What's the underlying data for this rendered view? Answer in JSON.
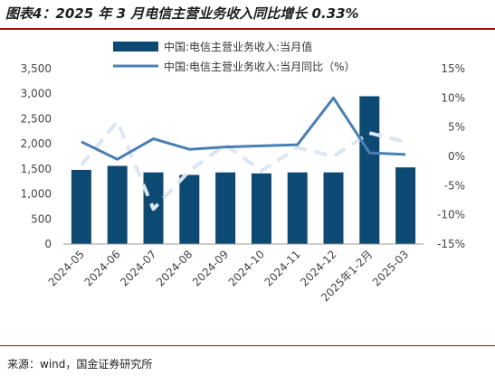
{
  "header": {
    "title": "图表4：2025 年 3 月电信主营业务收入同比增长 0.33%"
  },
  "footer": {
    "source": "来源：wind，国金证券研究所"
  },
  "chart_data": {
    "type": "bar",
    "categories": [
      "2024-05",
      "2024-06",
      "2024-07",
      "2024-08",
      "2024-09",
      "2024-10",
      "2024-11",
      "2024-12",
      "2025年1-2月",
      "2025-03"
    ],
    "series": [
      {
        "name": "中国:电信主营业务收入:当月值",
        "type": "bar",
        "axis": "left",
        "values": [
          1480,
          1560,
          1430,
          1380,
          1430,
          1410,
          1430,
          1430,
          2950,
          1530
        ]
      },
      {
        "name": "中国:电信主营业务收入:当月同比（%）",
        "type": "line",
        "axis": "right",
        "values": [
          2.5,
          -0.5,
          3.0,
          1.2,
          1.6,
          1.8,
          2.0,
          10.0,
          0.6,
          0.33
        ]
      },
      {
        "name": "",
        "type": "line",
        "axis": "right",
        "style": "dashed-light",
        "values": [
          -1.5,
          6.0,
          -9.0,
          -2.5,
          2.0,
          -2.5,
          1.5,
          0.0,
          4.0,
          2.5
        ]
      }
    ],
    "ylim_left": [
      0,
      3500
    ],
    "yticks_left": [
      0,
      500,
      1000,
      1500,
      2000,
      2500,
      3000,
      3500
    ],
    "ytick_labels_left": [
      "0",
      "500",
      "1,000",
      "1,500",
      "2,000",
      "2,500",
      "3,000",
      "3,500"
    ],
    "ylim_right": [
      -15,
      15
    ],
    "yticks_right": [
      -15,
      -10,
      -5,
      0,
      5,
      10,
      15
    ],
    "ytick_labels_right": [
      "-15%",
      "-10%",
      "-5%",
      "0%",
      "5%",
      "10%",
      "15%"
    ],
    "grid": false,
    "legend": "top-center",
    "colors": {
      "bar": "#0d4a73",
      "line": "#4a7fb5",
      "dashed": "#dbe6f2"
    }
  }
}
